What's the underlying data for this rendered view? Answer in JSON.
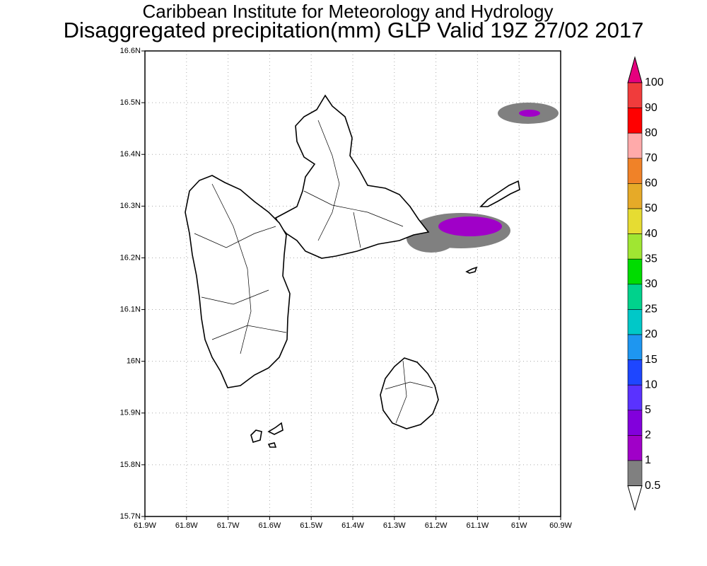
{
  "title": "Caribbean Institute for Meteorology and Hydrology",
  "subtitle": "Disaggregated precipitation(mm) GLP Valid 19Z 27/02 2017",
  "map": {
    "xlim": [
      -61.9,
      -60.9
    ],
    "ylim": [
      15.7,
      16.6
    ],
    "xticks": [
      {
        "value": -61.9,
        "label": "61.9W"
      },
      {
        "value": -61.8,
        "label": "61.8W"
      },
      {
        "value": -61.7,
        "label": "61.7W"
      },
      {
        "value": -61.6,
        "label": "61.6W"
      },
      {
        "value": -61.5,
        "label": "61.5W"
      },
      {
        "value": -61.4,
        "label": "61.4W"
      },
      {
        "value": -61.3,
        "label": "61.3W"
      },
      {
        "value": -61.2,
        "label": "61.2W"
      },
      {
        "value": -61.1,
        "label": "61.1W"
      },
      {
        "value": -61.0,
        "label": "61W"
      },
      {
        "value": -60.9,
        "label": "60.9W"
      }
    ],
    "yticks": [
      {
        "value": 15.7,
        "label": "15.7N"
      },
      {
        "value": 15.8,
        "label": "15.8N"
      },
      {
        "value": 15.9,
        "label": "15.9N"
      },
      {
        "value": 16.0,
        "label": "16N"
      },
      {
        "value": 16.1,
        "label": "16.1N"
      },
      {
        "value": 16.2,
        "label": "16.2N"
      },
      {
        "value": 16.3,
        "label": "16.3N"
      },
      {
        "value": 16.4,
        "label": "16.4N"
      },
      {
        "value": 16.5,
        "label": "16.5N"
      },
      {
        "value": 16.6,
        "label": "16.6N"
      }
    ],
    "grid": true
  },
  "colorbar": {
    "levels": [
      100,
      90,
      80,
      70,
      60,
      50,
      40,
      35,
      30,
      25,
      20,
      15,
      10,
      5,
      2,
      1,
      0.5
    ],
    "colors": [
      "#e6007e",
      "#f03c3c",
      "#ff0000",
      "#ffaaaa",
      "#f08228",
      "#e6aa28",
      "#e6dc32",
      "#a0e632",
      "#00dc00",
      "#00d28c",
      "#00c8c8",
      "#1e96f0",
      "#1e46ff",
      "#5a32ff",
      "#8200dc",
      "#a000c8",
      "#808080",
      "#ffffff"
    ]
  }
}
